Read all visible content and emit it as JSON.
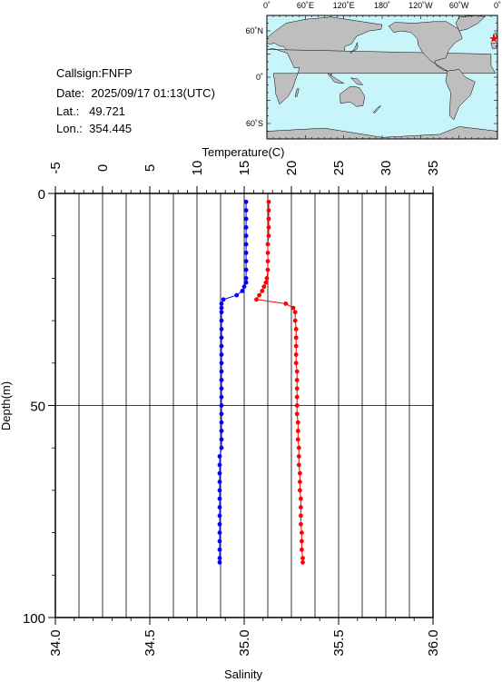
{
  "station": {
    "callsign_label": "Callsign:",
    "callsign": "FNFP",
    "date_label": "Date:",
    "date": "2025/09/17 01:13(UTC)",
    "lat_label": "Lat.:",
    "lat": "49.721",
    "lon_label": "Lon.:",
    "lon": "354.445"
  },
  "map": {
    "top_ticks": [
      "0˚",
      "60˚E",
      "120˚E",
      "180˚",
      "120˚W",
      "60˚W",
      "0˚"
    ],
    "left_ticks": [
      "60˚N",
      "0˚",
      "60˚S"
    ],
    "ocean_color": "#c8f5fa",
    "land_color": "#bebebe",
    "marker_color": "#ff0000",
    "marker": {
      "lon": 354.445,
      "lat": 49.721
    }
  },
  "chart_data": {
    "type": "line",
    "top_axis": {
      "label": "Temperature(C)",
      "range": [
        -5,
        35
      ],
      "ticks": [
        -5,
        0,
        5,
        10,
        15,
        20,
        25,
        30,
        35
      ]
    },
    "bottom_axis": {
      "label": "Salinity",
      "range": [
        34.0,
        36.0
      ],
      "ticks": [
        "34.0",
        "34.5",
        "35.0",
        "35.5",
        "36.0"
      ]
    },
    "left_axis": {
      "label": "Depth(m)",
      "range": [
        0,
        100
      ],
      "ticks": [
        0,
        50,
        100
      ],
      "inverted": true
    },
    "grid": true,
    "series": [
      {
        "kind": "temperature",
        "color": "#ff0000",
        "depth": [
          2,
          4,
          6,
          8,
          10,
          12,
          14,
          16,
          18,
          20,
          21,
          22,
          23,
          24,
          25,
          26,
          27,
          28,
          30,
          32,
          34,
          36,
          38,
          40,
          42,
          44,
          46,
          48,
          50,
          52,
          54,
          56,
          58,
          60,
          62,
          64,
          66,
          68,
          70,
          72,
          74,
          76,
          78,
          80,
          82,
          84,
          86,
          87
        ],
        "values": [
          17.6,
          17.6,
          17.6,
          17.6,
          17.6,
          17.5,
          17.5,
          17.5,
          17.5,
          17.4,
          17.3,
          17.1,
          16.9,
          16.6,
          16.3,
          19.4,
          20.2,
          20.4,
          20.4,
          20.5,
          20.5,
          20.5,
          20.5,
          20.5,
          20.6,
          20.6,
          20.6,
          20.6,
          20.6,
          20.6,
          20.7,
          20.7,
          20.7,
          20.8,
          20.8,
          20.8,
          20.9,
          20.9,
          20.9,
          21.0,
          21.0,
          21.0,
          21.0,
          21.1,
          21.1,
          21.1,
          21.2,
          21.2
        ]
      },
      {
        "kind": "salinity",
        "color": "#0000ff",
        "depth": [
          2,
          4,
          6,
          8,
          10,
          12,
          14,
          16,
          18,
          20,
          21,
          22,
          23,
          24,
          25,
          26,
          27,
          28,
          30,
          32,
          34,
          36,
          38,
          40,
          42,
          44,
          46,
          48,
          50,
          52,
          54,
          56,
          58,
          60,
          62,
          64,
          66,
          68,
          70,
          72,
          74,
          76,
          78,
          80,
          82,
          84,
          86,
          87
        ],
        "values": [
          35.01,
          35.01,
          35.01,
          35.01,
          35.01,
          35.01,
          35.01,
          35.01,
          35.01,
          35.01,
          35.01,
          35.0,
          34.99,
          34.96,
          34.89,
          34.88,
          34.88,
          34.88,
          34.88,
          34.88,
          34.88,
          34.88,
          34.88,
          34.88,
          34.88,
          34.88,
          34.88,
          34.88,
          34.88,
          34.88,
          34.88,
          34.88,
          34.88,
          34.88,
          34.87,
          34.87,
          34.87,
          34.87,
          34.87,
          34.87,
          34.87,
          34.87,
          34.87,
          34.87,
          34.87,
          34.87,
          34.87,
          34.87
        ]
      }
    ]
  }
}
